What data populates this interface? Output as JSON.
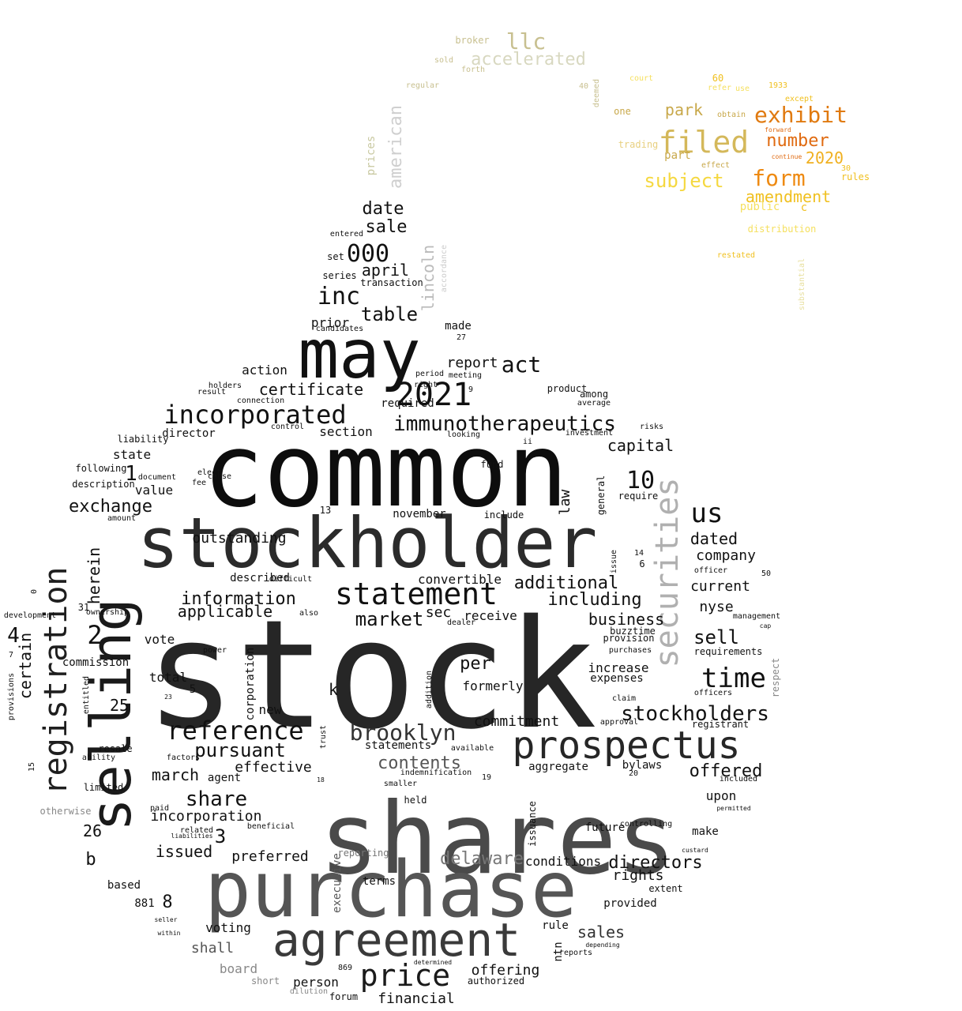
{
  "words": [
    {
      "text": "stock",
      "color": "#262626"
    },
    {
      "text": "common",
      "color": "#0d0d0d"
    },
    {
      "text": "shares",
      "color": "#4a4a4a"
    },
    {
      "text": "purchase",
      "color": "#555555"
    },
    {
      "text": "stockholder",
      "color": "#2b2b2b"
    },
    {
      "text": "selling",
      "color": "#1a1a1a"
    },
    {
      "text": "may",
      "color": "#111111"
    },
    {
      "text": "agreement",
      "color": "#3a3a3a"
    },
    {
      "text": "prospectus",
      "color": "#262626"
    },
    {
      "text": "securities",
      "color": "#b0b0b0"
    },
    {
      "text": "registration",
      "color": "#1e1e1e"
    },
    {
      "text": "statement",
      "color": "#111111"
    },
    {
      "text": "reference",
      "color": "#111111"
    },
    {
      "text": "price",
      "color": "#1a1a1a"
    },
    {
      "text": "2021",
      "color": "#111111"
    },
    {
      "text": "incorporated",
      "color": "#111111"
    },
    {
      "text": "immunotherapeutics",
      "color": "#111111"
    },
    {
      "text": "brooklyn",
      "color": "#333333"
    },
    {
      "text": "stockholders",
      "color": "#111111"
    },
    {
      "text": "time",
      "color": "#111111"
    },
    {
      "text": "inc",
      "color": "#111111"
    },
    {
      "text": "000",
      "color": "#111111"
    },
    {
      "text": "exhibit",
      "color": "#e07a10"
    },
    {
      "text": "filed",
      "color": "#d4b85a"
    },
    {
      "text": "form",
      "color": "#ee8a12"
    },
    {
      "text": "llc",
      "color": "#c8c090"
    },
    {
      "text": "accelerated",
      "color": "#d8d8c0"
    },
    {
      "text": "number",
      "color": "#e06a10"
    },
    {
      "text": "subject",
      "color": "#f5d840"
    },
    {
      "text": "amendment",
      "color": "#f0c020"
    },
    {
      "text": "park",
      "color": "#c8a84a"
    },
    {
      "text": "2020",
      "color": "#f0b020"
    },
    {
      "text": "american",
      "color": "#cfcfcf"
    },
    {
      "text": "lincoln",
      "color": "#bbbbbb"
    },
    {
      "text": "prices",
      "color": "#c8c8a0"
    },
    {
      "text": "us",
      "color": "#111111"
    },
    {
      "text": "10",
      "color": "#111111"
    },
    {
      "text": "act",
      "color": "#111111"
    },
    {
      "text": "date",
      "color": "#111111"
    },
    {
      "text": "sale",
      "color": "#111111"
    },
    {
      "text": "table",
      "color": "#111111"
    },
    {
      "text": "april",
      "color": "#111111"
    },
    {
      "text": "certificate",
      "color": "#111111"
    },
    {
      "text": "exchange",
      "color": "#111111"
    },
    {
      "text": "information",
      "color": "#111111"
    },
    {
      "text": "applicable",
      "color": "#111111"
    },
    {
      "text": "market",
      "color": "#111111"
    },
    {
      "text": "capital",
      "color": "#111111"
    },
    {
      "text": "additional",
      "color": "#111111"
    },
    {
      "text": "including",
      "color": "#111111"
    },
    {
      "text": "dated",
      "color": "#111111"
    },
    {
      "text": "company",
      "color": "#111111"
    },
    {
      "text": "current",
      "color": "#111111"
    },
    {
      "text": "nyse",
      "color": "#111111"
    },
    {
      "text": "sell",
      "color": "#111111"
    },
    {
      "text": "business",
      "color": "#111111"
    },
    {
      "text": "outstanding",
      "color": "#111111"
    },
    {
      "text": "share",
      "color": "#111111"
    },
    {
      "text": "pursuant",
      "color": "#111111"
    },
    {
      "text": "effective",
      "color": "#111111"
    },
    {
      "text": "march",
      "color": "#111111"
    },
    {
      "text": "contents",
      "color": "#555555"
    },
    {
      "text": "delaware",
      "color": "#777777"
    },
    {
      "text": "directors",
      "color": "#111111"
    },
    {
      "text": "offered",
      "color": "#111111"
    },
    {
      "text": "sales",
      "color": "#333333"
    },
    {
      "text": "certain",
      "color": "#111111"
    },
    {
      "text": "herein",
      "color": "#111111"
    },
    {
      "text": "per",
      "color": "#111111"
    },
    {
      "text": "law",
      "color": "#111111"
    },
    {
      "text": "sec",
      "color": "#111111"
    },
    {
      "text": "receive",
      "color": "#111111"
    },
    {
      "text": "commitment",
      "color": "#111111"
    },
    {
      "text": "incorporation",
      "color": "#111111"
    },
    {
      "text": "issued",
      "color": "#111111"
    },
    {
      "text": "preferred",
      "color": "#111111"
    },
    {
      "text": "conditions",
      "color": "#111111"
    },
    {
      "text": "rights",
      "color": "#111111"
    },
    {
      "text": "offering",
      "color": "#111111"
    },
    {
      "text": "financial",
      "color": "#111111"
    },
    {
      "text": "shall",
      "color": "#555555"
    },
    {
      "text": "voting",
      "color": "#111111"
    },
    {
      "text": "board",
      "color": "#888888"
    },
    {
      "text": "person",
      "color": "#111111"
    },
    {
      "text": "1",
      "color": "#111111"
    },
    {
      "text": "2",
      "color": "#111111"
    },
    {
      "text": "3",
      "color": "#111111"
    },
    {
      "text": "4",
      "color": "#111111"
    },
    {
      "text": "8",
      "color": "#111111"
    },
    {
      "text": "25",
      "color": "#111111"
    },
    {
      "text": "26",
      "color": "#111111"
    },
    {
      "text": "b",
      "color": "#111111"
    },
    {
      "text": "k",
      "color": "#111111"
    },
    {
      "text": "made",
      "color": "#111111"
    },
    {
      "text": "report",
      "color": "#111111"
    },
    {
      "text": "action",
      "color": "#111111"
    },
    {
      "text": "prior",
      "color": "#111111"
    },
    {
      "text": "required",
      "color": "#111111"
    },
    {
      "text": "value",
      "color": "#111111"
    },
    {
      "text": "state",
      "color": "#111111"
    },
    {
      "text": "director",
      "color": "#111111"
    },
    {
      "text": "section",
      "color": "#111111"
    },
    {
      "text": "described",
      "color": "#111111"
    },
    {
      "text": "november",
      "color": "#111111"
    },
    {
      "text": "include",
      "color": "#111111"
    },
    {
      "text": "convertible",
      "color": "#111111"
    },
    {
      "text": "increase",
      "color": "#111111"
    },
    {
      "text": "expenses",
      "color": "#111111"
    },
    {
      "text": "formerly",
      "color": "#111111"
    },
    {
      "text": "total",
      "color": "#111111"
    },
    {
      "text": "vote",
      "color": "#111111"
    },
    {
      "text": "commission",
      "color": "#111111"
    },
    {
      "text": "corporation",
      "color": "#111111"
    },
    {
      "text": "new",
      "color": "#111111"
    },
    {
      "text": "statements",
      "color": "#111111"
    },
    {
      "text": "aggregate",
      "color": "#111111"
    },
    {
      "text": "bylaws",
      "color": "#111111"
    },
    {
      "text": "upon",
      "color": "#111111"
    },
    {
      "text": "future",
      "color": "#111111"
    },
    {
      "text": "make",
      "color": "#111111"
    },
    {
      "text": "provided",
      "color": "#111111"
    },
    {
      "text": "extent",
      "color": "#111111"
    },
    {
      "text": "rule",
      "color": "#111111"
    },
    {
      "text": "based",
      "color": "#111111"
    },
    {
      "text": "881",
      "color": "#111111"
    },
    {
      "text": "limited",
      "color": "#111111"
    },
    {
      "text": "resale",
      "color": "#111111"
    },
    {
      "text": "agent",
      "color": "#111111"
    },
    {
      "text": "requirements",
      "color": "#111111"
    },
    {
      "text": "registrant",
      "color": "#111111"
    },
    {
      "text": "held",
      "color": "#111111"
    },
    {
      "text": "terms",
      "color": "#111111"
    },
    {
      "text": "reporting",
      "color": "#777777"
    },
    {
      "text": "executive",
      "color": "#555555"
    },
    {
      "text": "authorized",
      "color": "#111111"
    },
    {
      "text": "short",
      "color": "#888888"
    },
    {
      "text": "forum",
      "color": "#111111"
    },
    {
      "text": "ntn",
      "color": "#111111"
    },
    {
      "text": "series",
      "color": "#111111"
    },
    {
      "text": "set",
      "color": "#111111"
    },
    {
      "text": "transaction",
      "color": "#111111"
    },
    {
      "text": "liability",
      "color": "#111111"
    },
    {
      "text": "following",
      "color": "#111111"
    },
    {
      "text": "description",
      "color": "#111111"
    },
    {
      "text": "fund",
      "color": "#111111"
    },
    {
      "text": "general",
      "color": "#111111"
    },
    {
      "text": "require",
      "color": "#111111"
    },
    {
      "text": "product",
      "color": "#111111"
    },
    {
      "text": "among",
      "color": "#111111"
    },
    {
      "text": "buzztime",
      "color": "#111111"
    },
    {
      "text": "provision",
      "color": "#111111"
    },
    {
      "text": "purchases",
      "color": "#111111"
    },
    {
      "text": "officer",
      "color": "#111111"
    },
    {
      "text": "claim",
      "color": "#111111"
    },
    {
      "text": "approval",
      "color": "#111111"
    },
    {
      "text": "officers",
      "color": "#111111"
    },
    {
      "text": "otherwise",
      "color": "#888888"
    },
    {
      "text": "available",
      "color": "#111111"
    },
    {
      "text": "smaller",
      "color": "#111111"
    },
    {
      "text": "indemnification",
      "color": "#111111"
    },
    {
      "text": "broker",
      "color": "#c8c090"
    },
    {
      "text": "regular",
      "color": "#c8c090"
    },
    {
      "text": "forth",
      "color": "#c8c090"
    },
    {
      "text": "sold",
      "color": "#c8c090"
    },
    {
      "text": "court",
      "color": "#f5e060"
    },
    {
      "text": "refer",
      "color": "#f5e060"
    },
    {
      "text": "use",
      "color": "#f5e060"
    },
    {
      "text": "1933",
      "color": "#f0c020"
    },
    {
      "text": "except",
      "color": "#f0c020"
    },
    {
      "text": "obtain",
      "color": "#c8a84a"
    },
    {
      "text": "one",
      "color": "#c8a84a"
    },
    {
      "text": "trading",
      "color": "#e8d080"
    },
    {
      "text": "part",
      "color": "#c8a84a"
    },
    {
      "text": "effect",
      "color": "#c8a84a"
    },
    {
      "text": "public",
      "color": "#f5e060"
    },
    {
      "text": "rules",
      "color": "#f0c020"
    },
    {
      "text": "distribution",
      "color": "#f5e060"
    },
    {
      "text": "restated",
      "color": "#f0c020"
    },
    {
      "text": "forward",
      "color": "#e06a10"
    },
    {
      "text": "continue",
      "color": "#e06a10"
    },
    {
      "text": "deemed",
      "color": "#c8c090"
    },
    {
      "text": "substantial",
      "color": "#e8e0a0"
    },
    {
      "text": "accordance",
      "color": "#cccccc"
    },
    {
      "text": "entered",
      "color": "#111111"
    },
    {
      "text": "candidates",
      "color": "#111111"
    },
    {
      "text": "period",
      "color": "#111111"
    },
    {
      "text": "meeting",
      "color": "#111111"
    },
    {
      "text": "right",
      "color": "#111111"
    },
    {
      "text": "holders",
      "color": "#111111"
    },
    {
      "text": "result",
      "color": "#111111"
    },
    {
      "text": "connection",
      "color": "#111111"
    },
    {
      "text": "control",
      "color": "#111111"
    },
    {
      "text": "looking",
      "color": "#111111"
    },
    {
      "text": "investment",
      "color": "#111111"
    },
    {
      "text": "average",
      "color": "#111111"
    },
    {
      "text": "risks",
      "color": "#111111"
    },
    {
      "text": "elect",
      "color": "#111111"
    },
    {
      "text": "cause",
      "color": "#111111"
    },
    {
      "text": "fee",
      "color": "#111111"
    },
    {
      "text": "document",
      "color": "#111111"
    },
    {
      "text": "amount",
      "color": "#111111"
    },
    {
      "text": "difficult",
      "color": "#111111"
    },
    {
      "text": "also",
      "color": "#111111"
    },
    {
      "text": "power",
      "color": "#111111"
    },
    {
      "text": "dealer",
      "color": "#111111"
    },
    {
      "text": "issuance",
      "color": "#111111"
    },
    {
      "text": "addition",
      "color": "#111111"
    },
    {
      "text": "issue",
      "color": "#111111"
    },
    {
      "text": "management",
      "color": "#111111"
    },
    {
      "text": "development",
      "color": "#111111"
    },
    {
      "text": "ownership",
      "color": "#111111"
    },
    {
      "text": "provisions",
      "color": "#111111"
    },
    {
      "text": "entitled",
      "color": "#111111"
    },
    {
      "text": "ability",
      "color": "#111111"
    },
    {
      "text": "factors",
      "color": "#111111"
    },
    {
      "text": "paid",
      "color": "#111111"
    },
    {
      "text": "related",
      "color": "#111111"
    },
    {
      "text": "liabilities",
      "color": "#111111"
    },
    {
      "text": "beneficial",
      "color": "#111111"
    },
    {
      "text": "trust",
      "color": "#111111"
    },
    {
      "text": "custard",
      "color": "#111111"
    },
    {
      "text": "included",
      "color": "#111111"
    },
    {
      "text": "permitted",
      "color": "#111111"
    },
    {
      "text": "controlling",
      "color": "#111111"
    },
    {
      "text": "depending",
      "color": "#111111"
    },
    {
      "text": "seller",
      "color": "#111111"
    },
    {
      "text": "within",
      "color": "#111111"
    },
    {
      "text": "dilution",
      "color": "#888888"
    },
    {
      "text": "869",
      "color": "#111111"
    },
    {
      "text": "determined",
      "color": "#111111"
    },
    {
      "text": "reports",
      "color": "#111111"
    },
    {
      "text": "respect",
      "color": "#888888"
    },
    {
      "text": "cap",
      "color": "#111111"
    },
    {
      "text": "5",
      "color": "#111111"
    },
    {
      "text": "6",
      "color": "#111111"
    },
    {
      "text": "9",
      "color": "#111111"
    },
    {
      "text": "13",
      "color": "#111111"
    },
    {
      "text": "14",
      "color": "#111111"
    },
    {
      "text": "15",
      "color": "#111111"
    },
    {
      "text": "18",
      "color": "#111111"
    },
    {
      "text": "19",
      "color": "#111111"
    },
    {
      "text": "20",
      "color": "#111111"
    },
    {
      "text": "23",
      "color": "#111111"
    },
    {
      "text": "27",
      "color": "#111111"
    },
    {
      "text": "30",
      "color": "#f0c020"
    },
    {
      "text": "31",
      "color": "#111111"
    },
    {
      "text": "40",
      "color": "#c8c090"
    },
    {
      "text": "50",
      "color": "#111111"
    },
    {
      "text": "60",
      "color": "#f0c020"
    },
    {
      "text": "ii",
      "color": "#111111"
    },
    {
      "text": "c",
      "color": "#f0c020"
    },
    {
      "text": "0",
      "color": "#111111"
    },
    {
      "text": "7",
      "color": "#111111"
    }
  ]
}
